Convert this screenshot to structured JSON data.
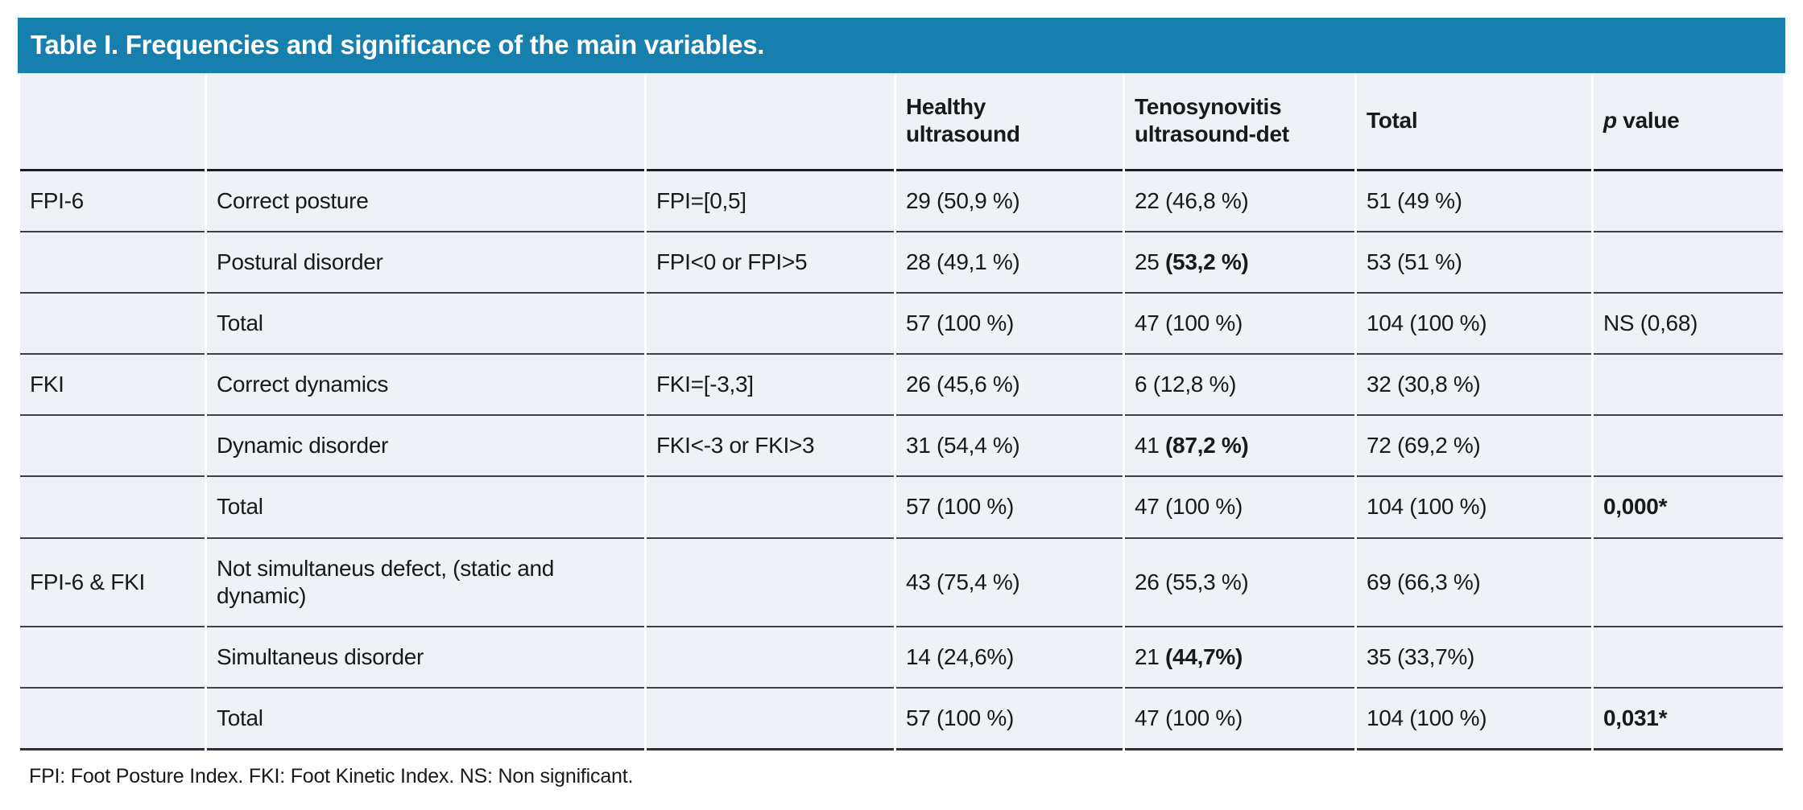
{
  "title": "Table I. Frequencies and significance of the main variables.",
  "colors": {
    "title_bar_bg": "#177fad",
    "title_text": "#ffffff",
    "cell_bg": "#eef1f6",
    "text": "#17191c",
    "row_separator": "#3d4045",
    "header_separator": "#1b1e22"
  },
  "header": {
    "healthy": "Healthy ultrasound",
    "tenosynovitis": "Tenosynovitis ultrasound-det",
    "total": "Total",
    "p_italic": "p",
    "p_rest": " value"
  },
  "rows": [
    {
      "group": "FPI-6",
      "label": "Correct posture",
      "criteria": "FPI=[0,5]",
      "healthy": {
        "normal": "29 (50,9 %)",
        "bold": ""
      },
      "tenosynovitis": {
        "normal": "22 (46,8 %)",
        "bold": ""
      },
      "total": {
        "normal": "51 (49 %)",
        "bold": ""
      },
      "p": {
        "normal": "",
        "bold": ""
      }
    },
    {
      "group": "",
      "label": "Postural disorder",
      "criteria": "FPI<0 or FPI>5",
      "healthy": {
        "normal": "28 (49,1 %)",
        "bold": ""
      },
      "tenosynovitis": {
        "normal": "25 ",
        "bold": "(53,2 %)"
      },
      "total": {
        "normal": "53 (51 %)",
        "bold": ""
      },
      "p": {
        "normal": "",
        "bold": ""
      }
    },
    {
      "group": "",
      "label": "Total",
      "criteria": "",
      "healthy": {
        "normal": "57 (100 %)",
        "bold": ""
      },
      "tenosynovitis": {
        "normal": "47 (100 %)",
        "bold": ""
      },
      "total": {
        "normal": "104 (100 %)",
        "bold": ""
      },
      "p": {
        "normal": "NS (0,68)",
        "bold": ""
      }
    },
    {
      "group": "FKI",
      "label": "Correct dynamics",
      "criteria": "FKI=[-3,3]",
      "healthy": {
        "normal": "26 (45,6 %)",
        "bold": ""
      },
      "tenosynovitis": {
        "normal": "6 (12,8 %)",
        "bold": ""
      },
      "total": {
        "normal": "32 (30,8 %)",
        "bold": ""
      },
      "p": {
        "normal": "",
        "bold": ""
      }
    },
    {
      "group": "",
      "label": "Dynamic disorder",
      "criteria": "FKI<-3 or FKI>3",
      "healthy": {
        "normal": "31 (54,4 %)",
        "bold": ""
      },
      "tenosynovitis": {
        "normal": "41 ",
        "bold": "(87,2 %)"
      },
      "total": {
        "normal": "72 (69,2 %)",
        "bold": ""
      },
      "p": {
        "normal": "",
        "bold": ""
      }
    },
    {
      "group": "",
      "label": "Total",
      "criteria": "",
      "healthy": {
        "normal": "57 (100 %)",
        "bold": ""
      },
      "tenosynovitis": {
        "normal": "47 (100 %)",
        "bold": ""
      },
      "total": {
        "normal": "104 (100 %)",
        "bold": ""
      },
      "p": {
        "normal": "",
        "bold": "0,000*"
      }
    },
    {
      "group": "FPI-6 & FKI",
      "label": "Not simultaneus defect, (static and dynamic)",
      "criteria": "",
      "healthy": {
        "normal": "43 (75,4 %)",
        "bold": ""
      },
      "tenosynovitis": {
        "normal": "26 (55,3 %)",
        "bold": ""
      },
      "total": {
        "normal": "69 (66,3 %)",
        "bold": ""
      },
      "p": {
        "normal": "",
        "bold": ""
      }
    },
    {
      "group": "",
      "label": "Simultaneus disorder",
      "criteria": "",
      "healthy": {
        "normal": "14 (24,6%)",
        "bold": ""
      },
      "tenosynovitis": {
        "normal": "21 ",
        "bold": "(44,7%)"
      },
      "total": {
        "normal": "35 (33,7%)",
        "bold": ""
      },
      "p": {
        "normal": "",
        "bold": ""
      }
    },
    {
      "group": "",
      "label": "Total",
      "criteria": "",
      "healthy": {
        "normal": "57 (100 %)",
        "bold": ""
      },
      "tenosynovitis": {
        "normal": "47 (100 %)",
        "bold": ""
      },
      "total": {
        "normal": "104 (100 %)",
        "bold": ""
      },
      "p": {
        "normal": "",
        "bold": "0,031*"
      }
    }
  ],
  "footnote": "FPI: Foot Posture Index. FKI: Foot Kinetic Index. NS: Non significant."
}
